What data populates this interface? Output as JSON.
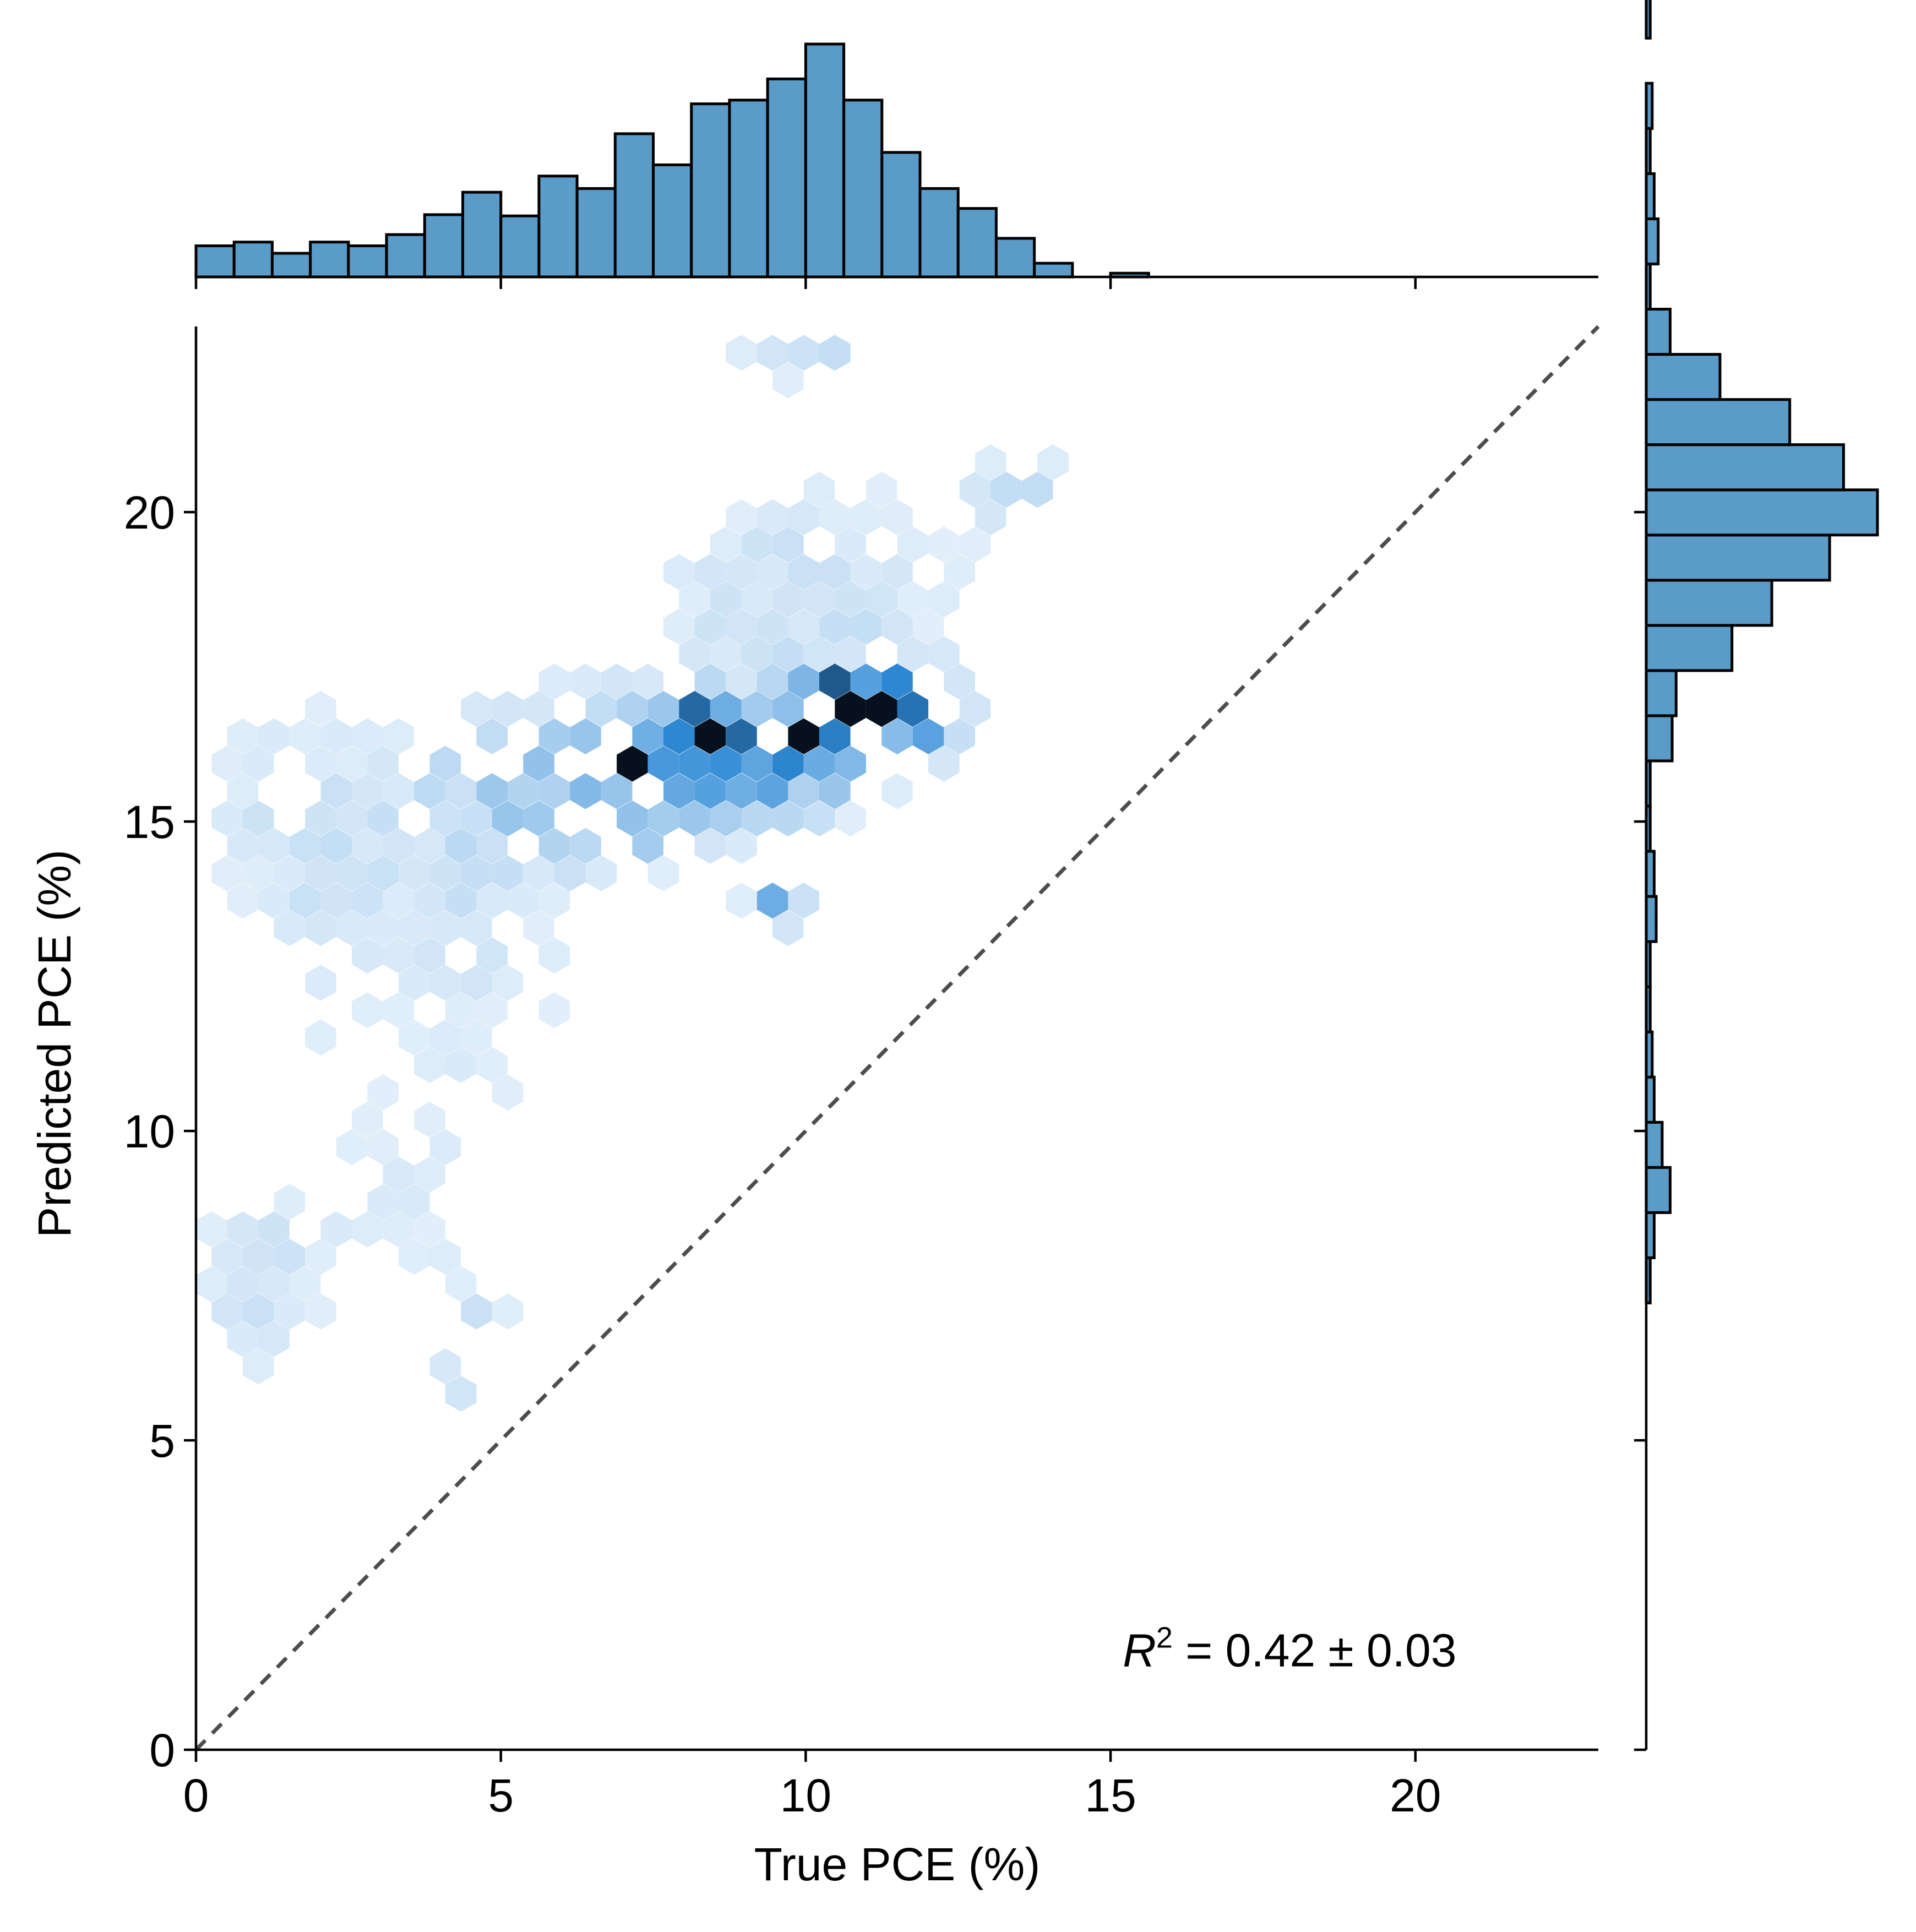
{
  "chart_data": {
    "type": "hexbin-jointplot",
    "xlabel": "True PCE (%)",
    "ylabel": "Predicted PCE (%)",
    "xlim": [
      0,
      23
    ],
    "ylim": [
      0,
      23
    ],
    "xticks": [
      0,
      5,
      10,
      15,
      20
    ],
    "yticks": [
      0,
      5,
      10,
      15,
      20
    ],
    "annotation": {
      "symbol": "R",
      "superscript": "2",
      "text": " = 0.42 ± 0.03"
    },
    "reference_line": {
      "style": "dashed",
      "from": [
        0,
        0
      ],
      "to": [
        23,
        23
      ],
      "color": "#4d4d4d"
    },
    "colors": {
      "hist": "#5a9bc8",
      "hex_light": "#f1f7fd",
      "hex_mid": "#2f8ad6",
      "hex_dark": "#06111d"
    },
    "top_histogram": {
      "bin_edges_start": 0,
      "bin_width": 0.625,
      "counts": [
        25,
        28,
        19,
        28,
        25,
        34,
        50,
        68,
        49,
        81,
        71,
        115,
        90,
        139,
        142,
        159,
        187,
        142,
        100,
        71,
        55,
        31,
        11,
        0,
        3
      ]
    },
    "right_histogram": {
      "bin_edges_start": 4.3,
      "bin_width": 0.73,
      "counts": [
        0,
        0,
        0,
        0,
        2,
        4,
        12,
        8,
        4,
        3,
        2,
        2,
        5,
        4,
        2,
        2,
        13,
        15,
        43,
        63,
        92,
        116,
        99,
        72,
        37,
        12,
        2,
        6,
        4,
        2,
        3,
        0,
        2
      ]
    },
    "hexbin": {
      "gridsize_x": 45,
      "clusters": [
        {
          "x": 10.5,
          "y": 16.9,
          "sx": 0.35,
          "sy": 0.3,
          "w": 1.0
        },
        {
          "x": 7.2,
          "y": 15.9,
          "sx": 0.15,
          "sy": 0.15,
          "w": 0.9
        },
        {
          "x": 10.2,
          "y": 16.4,
          "sx": 0.2,
          "sy": 0.2,
          "w": 0.85
        },
        {
          "x": 11.2,
          "y": 16.9,
          "sx": 0.3,
          "sy": 0.4,
          "w": 0.7
        },
        {
          "x": 9.0,
          "y": 16.0,
          "sx": 1.5,
          "sy": 0.6,
          "w": 0.5
        },
        {
          "x": 8.3,
          "y": 16.6,
          "sx": 0.3,
          "sy": 0.3,
          "w": 0.7
        },
        {
          "x": 12.0,
          "y": 16.8,
          "sx": 0.4,
          "sy": 0.4,
          "w": 0.55
        },
        {
          "x": 7.0,
          "y": 14.7,
          "sx": 0.2,
          "sy": 0.2,
          "w": 0.6
        },
        {
          "x": 9.5,
          "y": 13.6,
          "sx": 0.3,
          "sy": 0.2,
          "w": 0.5
        },
        {
          "x": 6.0,
          "y": 15.5,
          "sx": 1.8,
          "sy": 1.0,
          "w": 0.25
        },
        {
          "x": 10.0,
          "y": 18.5,
          "sx": 2.0,
          "sy": 1.5,
          "w": 0.15
        },
        {
          "x": 4.0,
          "y": 13.0,
          "sx": 1.5,
          "sy": 1.5,
          "w": 0.12
        },
        {
          "x": 3.5,
          "y": 8.5,
          "sx": 2.0,
          "sy": 2.0,
          "w": 0.08
        },
        {
          "x": 13.5,
          "y": 20.5,
          "sx": 0.5,
          "sy": 0.5,
          "w": 0.2
        },
        {
          "x": 10.0,
          "y": 22.5,
          "sx": 1.0,
          "sy": 0.3,
          "w": 0.15
        },
        {
          "x": 15.5,
          "y": 12.8,
          "sx": 0.2,
          "sy": 0.5,
          "w": 0.08
        },
        {
          "x": 1.5,
          "y": 15.0,
          "sx": 1.0,
          "sy": 1.5,
          "w": 0.12
        },
        {
          "x": 1.0,
          "y": 7.5,
          "sx": 0.6,
          "sy": 1.0,
          "w": 0.12
        },
        {
          "x": 4.5,
          "y": 6.5,
          "sx": 0.3,
          "sy": 0.5,
          "w": 0.3
        },
        {
          "x": 3.8,
          "y": 7.5,
          "sx": 0.1,
          "sy": 0.1,
          "w": 0.35
        }
      ]
    }
  }
}
